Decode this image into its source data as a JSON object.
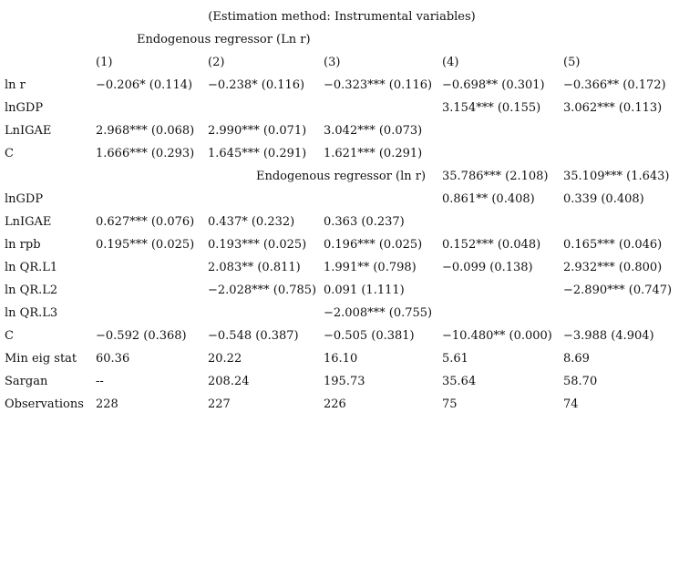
{
  "title": "(Estimation method: Instrumental variables)",
  "sections": {
    "first": "Endogenous regressor (Ln r)",
    "second": "Endogenous regressor (ln r)"
  },
  "columns": [
    "(1)",
    "(2)",
    "(3)",
    "(4)",
    "(5)"
  ],
  "table": {
    "rows": [
      {
        "label": "ln r",
        "cells": [
          "−0.206* (0.114)",
          "−0.238* (0.116)",
          "−0.323*** (0.116)",
          "−0.698** (0.301)",
          "−0.366** (0.172)"
        ]
      },
      {
        "label": "lnGDP",
        "cells": [
          "",
          "",
          "",
          "3.154*** (0.155)",
          "3.062*** (0.113)"
        ]
      },
      {
        "label": "LnIGAE",
        "cells": [
          "2.968*** (0.068)",
          "2.990*** (0.071)",
          "3.042*** (0.073)",
          "",
          ""
        ]
      },
      {
        "label": "C",
        "cells": [
          "1.666*** (0.293)",
          "1.645*** (0.291)",
          "1.621*** (0.291)",
          "",
          ""
        ]
      },
      {
        "label": "",
        "cells": [
          "",
          "",
          "",
          "35.786*** (2.108)",
          "35.109*** (1.643)"
        ]
      },
      {
        "label": "lnGDP",
        "cells": [
          "",
          "",
          "",
          "0.861** (0.408)",
          "0.339 (0.408)"
        ]
      },
      {
        "label": "LnIGAE",
        "cells": [
          "0.627*** (0.076)",
          "0.437* (0.232)",
          "0.363 (0.237)",
          "",
          ""
        ]
      },
      {
        "label": "ln rpb",
        "cells": [
          "0.195*** (0.025)",
          "0.193*** (0.025)",
          "0.196*** (0.025)",
          "0.152*** (0.048)",
          "0.165*** (0.046)"
        ]
      },
      {
        "label": "ln QR.L1",
        "cells": [
          "",
          "2.083** (0.811)",
          "1.991** (0.798)",
          "−0.099 (0.138)",
          "2.932*** (0.800)"
        ]
      },
      {
        "label": "ln QR.L2",
        "cells": [
          "",
          "−2.028*** (0.785)",
          "0.091 (1.111)",
          "",
          "−2.890*** (0.747)"
        ]
      },
      {
        "label": "ln QR.L3",
        "cells": [
          "",
          "",
          "−2.008*** (0.755)",
          "",
          ""
        ]
      },
      {
        "label": "C",
        "cells": [
          "−0.592 (0.368)",
          "−0.548 (0.387)",
          "−0.505 (0.381)",
          "−10.480** (0.000)",
          "−3.988 (4.904)"
        ]
      },
      {
        "label": "Min eig stat",
        "cells": [
          "60.36",
          "20.22",
          "16.10",
          "5.61",
          "8.69"
        ]
      },
      {
        "label": "Sargan",
        "cells": [
          "--",
          "208.24",
          "195.73",
          "35.64",
          "58.70"
        ]
      },
      {
        "label": "Observations",
        "cells": [
          "228",
          "227",
          "226",
          "75",
          "74"
        ]
      }
    ]
  }
}
